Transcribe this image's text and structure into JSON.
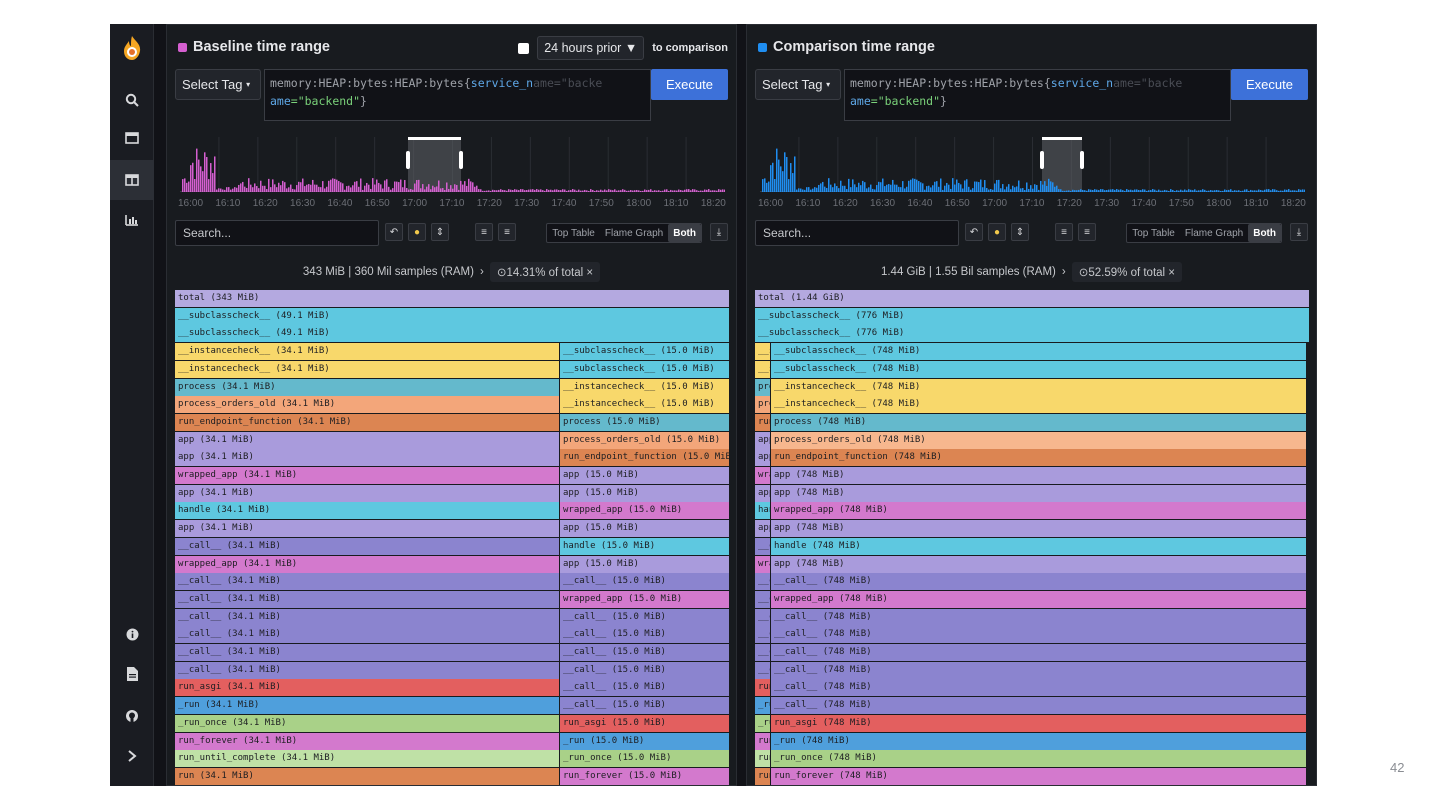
{
  "colors": {
    "baseline": "#d55fd0",
    "comparison": "#1f8ef1",
    "lav": "#b4a9e0",
    "cyan": "#5ec8e0",
    "yel": "#f8d86b",
    "teal": "#64b9cc",
    "salmon": "#f3a67a",
    "orange": "#dc8552",
    "purp": "#a99bdc",
    "pink": "#d379cd",
    "indigo": "#8b84cf",
    "red": "#e35f5f",
    "blue": "#4f9fdc",
    "green": "#a9d188",
    "lgreen": "#bfe1a6",
    "peach": "#f7b78e",
    "lav2": "#c2b8ea"
  },
  "sidebar": {
    "logo": "flame-logo-icon",
    "top_items": [
      "search-icon",
      "single-view-icon",
      "comparison-view-icon",
      "diff-view-icon"
    ],
    "bottom_items": [
      "info-icon",
      "docs-icon",
      "github-icon",
      "expand-icon"
    ]
  },
  "baseline": {
    "title": "Baseline time range",
    "checkbox_checked": false,
    "time_select": "24 hours prior",
    "time_select_suffix": "to comparison",
    "tag_label": "Select Tag",
    "query_line1": "memory:HEAP:bytes:HEAP:bytes{",
    "query_key": "service_n",
    "query_ghost": "ame=\"backe",
    "query_line2_key": "ame",
    "query_line2_val": "=\"backend\"",
    "query_close": "}",
    "execute": "Execute",
    "ticks": [
      "16:00",
      "16:10",
      "16:20",
      "16:30",
      "16:40",
      "16:50",
      "17:00",
      "17:10",
      "17:20",
      "17:30",
      "17:40",
      "17:50",
      "18:00",
      "18:10",
      "18:20"
    ],
    "search_placeholder": "Search...",
    "view_tabs": [
      "Top Table",
      "Flame Graph",
      "Both"
    ],
    "active_tab": "Both",
    "summary": "343 MiB | 360 Mil samples (RAM)",
    "summary_sep": "›",
    "focus": "⊙14.31% of total",
    "focus_close": "×"
  },
  "comparison": {
    "title": "Comparison time range",
    "tag_label": "Select Tag",
    "query_line1": "memory:HEAP:bytes:HEAP:bytes{",
    "query_key": "service_n",
    "query_ghost": "ame=\"backe",
    "query_line2_key": "ame",
    "query_line2_val": "=\"backend\"",
    "query_close": "}",
    "execute": "Execute",
    "ticks": [
      "16:00",
      "16:10",
      "16:20",
      "16:30",
      "16:40",
      "16:50",
      "17:00",
      "17:10",
      "17:20",
      "17:30",
      "17:40",
      "17:50",
      "18:00",
      "18:10",
      "18:20"
    ],
    "search_placeholder": "Search...",
    "view_tabs": [
      "Top Table",
      "Flame Graph",
      "Both"
    ],
    "active_tab": "Both",
    "summary": "1.44 GiB | 1.55 Bil samples (RAM)",
    "summary_sep": "›",
    "focus": "⊙52.59% of total",
    "focus_close": "×"
  },
  "flame_left": [
    [
      "total (343 MiB)",
      0,
      555,
      "lav"
    ],
    [
      "__subclasscheck__ (49.1 MiB)",
      0,
      555,
      "cyan"
    ],
    [
      "__subclasscheck__ (49.1 MiB)",
      0,
      555,
      "cyan"
    ],
    [
      "__instancecheck__ (34.1 MiB)",
      0,
      385,
      "yel"
    ],
    [
      "__subclasscheck__ (15.0 MiB)",
      385,
      170,
      "cyan"
    ],
    [
      "__instancecheck__ (34.1 MiB)",
      0,
      385,
      "yel"
    ],
    [
      "__subclasscheck__ (15.0 MiB)",
      385,
      170,
      "cyan"
    ],
    [
      "process (34.1 MiB)",
      0,
      385,
      "teal"
    ],
    [
      "__instancecheck__ (15.0 MiB)",
      385,
      170,
      "yel"
    ],
    [
      "process_orders_old (34.1 MiB)",
      0,
      385,
      "salmon"
    ],
    [
      "__instancecheck__ (15.0 MiB)",
      385,
      170,
      "yel"
    ],
    [
      "run_endpoint_function (34.1 MiB)",
      0,
      385,
      "orange"
    ],
    [
      "process (15.0 MiB)",
      385,
      170,
      "teal"
    ],
    [
      "app (34.1 MiB)",
      0,
      385,
      "purp"
    ],
    [
      "process_orders_old (15.0 MiB)",
      385,
      170,
      "salmon"
    ],
    [
      "app (34.1 MiB)",
      0,
      385,
      "purp"
    ],
    [
      "run_endpoint_function (15.0 MiB)",
      385,
      170,
      "orange"
    ],
    [
      "wrapped_app (34.1 MiB)",
      0,
      385,
      "pink"
    ],
    [
      "app (15.0 MiB)",
      385,
      170,
      "purp"
    ],
    [
      "app (34.1 MiB)",
      0,
      385,
      "purp"
    ],
    [
      "app (15.0 MiB)",
      385,
      170,
      "purp"
    ],
    [
      "handle (34.1 MiB)",
      0,
      385,
      "cyan"
    ],
    [
      "wrapped_app (15.0 MiB)",
      385,
      170,
      "pink"
    ],
    [
      "app (34.1 MiB)",
      0,
      385,
      "purp"
    ],
    [
      "app (15.0 MiB)",
      385,
      170,
      "purp"
    ],
    [
      "__call__ (34.1 MiB)",
      0,
      385,
      "indigo"
    ],
    [
      "handle (15.0 MiB)",
      385,
      170,
      "cyan"
    ],
    [
      "wrapped_app (34.1 MiB)",
      0,
      385,
      "pink"
    ],
    [
      "app (15.0 MiB)",
      385,
      170,
      "purp"
    ],
    [
      "__call__ (34.1 MiB)",
      0,
      385,
      "indigo"
    ],
    [
      "__call__ (15.0 MiB)",
      385,
      170,
      "indigo"
    ],
    [
      "__call__ (34.1 MiB)",
      0,
      385,
      "indigo"
    ],
    [
      "wrapped_app (15.0 MiB)",
      385,
      170,
      "pink"
    ],
    [
      "__call__ (34.1 MiB)",
      0,
      385,
      "indigo"
    ],
    [
      "__call__ (15.0 MiB)",
      385,
      170,
      "indigo"
    ],
    [
      "__call__ (34.1 MiB)",
      0,
      385,
      "indigo"
    ],
    [
      "__call__ (15.0 MiB)",
      385,
      170,
      "indigo"
    ],
    [
      "__call__ (34.1 MiB)",
      0,
      385,
      "indigo"
    ],
    [
      "__call__ (15.0 MiB)",
      385,
      170,
      "indigo"
    ],
    [
      "__call__ (34.1 MiB)",
      0,
      385,
      "indigo"
    ],
    [
      "__call__ (15.0 MiB)",
      385,
      170,
      "indigo"
    ],
    [
      "run_asgi (34.1 MiB)",
      0,
      385,
      "red"
    ],
    [
      "__call__ (15.0 MiB)",
      385,
      170,
      "indigo"
    ],
    [
      "_run (34.1 MiB)",
      0,
      385,
      "blue"
    ],
    [
      "__call__ (15.0 MiB)",
      385,
      170,
      "indigo"
    ],
    [
      "_run_once (34.1 MiB)",
      0,
      385,
      "green"
    ],
    [
      "run_asgi (15.0 MiB)",
      385,
      170,
      "red"
    ],
    [
      "run_forever (34.1 MiB)",
      0,
      385,
      "pink"
    ],
    [
      "_run (15.0 MiB)",
      385,
      170,
      "blue"
    ],
    [
      "run_until_complete (34.1 MiB)",
      0,
      385,
      "lgreen"
    ],
    [
      "_run_once (15.0 MiB)",
      385,
      170,
      "green"
    ],
    [
      "run (34.1 MiB)",
      0,
      385,
      "orange"
    ],
    [
      "run_forever (15.0 MiB)",
      385,
      170,
      "pink"
    ]
  ],
  "flame_right": [
    [
      "total (1.44 GiB)",
      0,
      555,
      "lav"
    ],
    [
      "__subclasscheck__ (776 MiB)",
      0,
      555,
      "cyan"
    ],
    [
      "__subclasscheck__ (776 MiB)",
      0,
      555,
      "cyan"
    ],
    [
      "__subclasscheck__",
      0,
      16,
      "yel"
    ],
    [
      "__subclasscheck__ (748 MiB)",
      16,
      536,
      "cyan"
    ],
    [
      "__subclasscheck__",
      0,
      16,
      "yel"
    ],
    [
      "__subclasscheck__ (748 MiB)",
      16,
      536,
      "cyan"
    ],
    [
      "process",
      0,
      16,
      "teal"
    ],
    [
      "__instancecheck__ (748 MiB)",
      16,
      536,
      "yel"
    ],
    [
      "process_orders_old",
      0,
      16,
      "salmon"
    ],
    [
      "__instancecheck__ (748 MiB)",
      16,
      536,
      "yel"
    ],
    [
      "run_endpoint_function",
      0,
      16,
      "orange"
    ],
    [
      "process (748 MiB)",
      16,
      536,
      "teal"
    ],
    [
      "app",
      0,
      16,
      "purp"
    ],
    [
      "process_orders_old (748 MiB)",
      16,
      536,
      "peach"
    ],
    [
      "app",
      0,
      16,
      "purp"
    ],
    [
      "run_endpoint_function (748 MiB)",
      16,
      536,
      "orange"
    ],
    [
      "wrapped_app",
      0,
      16,
      "pink"
    ],
    [
      "app (748 MiB)",
      16,
      536,
      "purp"
    ],
    [
      "app",
      0,
      16,
      "purp"
    ],
    [
      "app (748 MiB)",
      16,
      536,
      "purp"
    ],
    [
      "handle",
      0,
      16,
      "cyan"
    ],
    [
      "wrapped_app (748 MiB)",
      16,
      536,
      "pink"
    ],
    [
      "app",
      0,
      16,
      "purp"
    ],
    [
      "app (748 MiB)",
      16,
      536,
      "purp"
    ],
    [
      "__call__",
      0,
      16,
      "indigo"
    ],
    [
      "handle (748 MiB)",
      16,
      536,
      "cyan"
    ],
    [
      "wrapped_app",
      0,
      16,
      "pink"
    ],
    [
      "app (748 MiB)",
      16,
      536,
      "purp"
    ],
    [
      "__call__",
      0,
      16,
      "indigo"
    ],
    [
      "__call__ (748 MiB)",
      16,
      536,
      "indigo"
    ],
    [
      "__call__",
      0,
      16,
      "indigo"
    ],
    [
      "wrapped_app (748 MiB)",
      16,
      536,
      "pink"
    ],
    [
      "__call__",
      0,
      16,
      "indigo"
    ],
    [
      "__call__ (748 MiB)",
      16,
      536,
      "indigo"
    ],
    [
      "__call__",
      0,
      16,
      "indigo"
    ],
    [
      "__call__ (748 MiB)",
      16,
      536,
      "indigo"
    ],
    [
      "__call__",
      0,
      16,
      "indigo"
    ],
    [
      "__call__ (748 MiB)",
      16,
      536,
      "indigo"
    ],
    [
      "__call__",
      0,
      16,
      "indigo"
    ],
    [
      "__call__ (748 MiB)",
      16,
      536,
      "indigo"
    ],
    [
      "run_asgi",
      0,
      16,
      "red"
    ],
    [
      "__call__ (748 MiB)",
      16,
      536,
      "indigo"
    ],
    [
      "_run",
      0,
      16,
      "blue"
    ],
    [
      "__call__ (748 MiB)",
      16,
      536,
      "indigo"
    ],
    [
      "_run_once",
      0,
      16,
      "green"
    ],
    [
      "run_asgi (748 MiB)",
      16,
      536,
      "red"
    ],
    [
      "run_forever",
      0,
      16,
      "pink"
    ],
    [
      "_run (748 MiB)",
      16,
      536,
      "blue"
    ],
    [
      "run_until_complete",
      0,
      16,
      "lgreen"
    ],
    [
      "_run_once (748 MiB)",
      16,
      536,
      "green"
    ],
    [
      "run",
      0,
      16,
      "orange"
    ],
    [
      "run_forever (748 MiB)",
      16,
      536,
      "pink"
    ]
  ],
  "page_number": "42"
}
